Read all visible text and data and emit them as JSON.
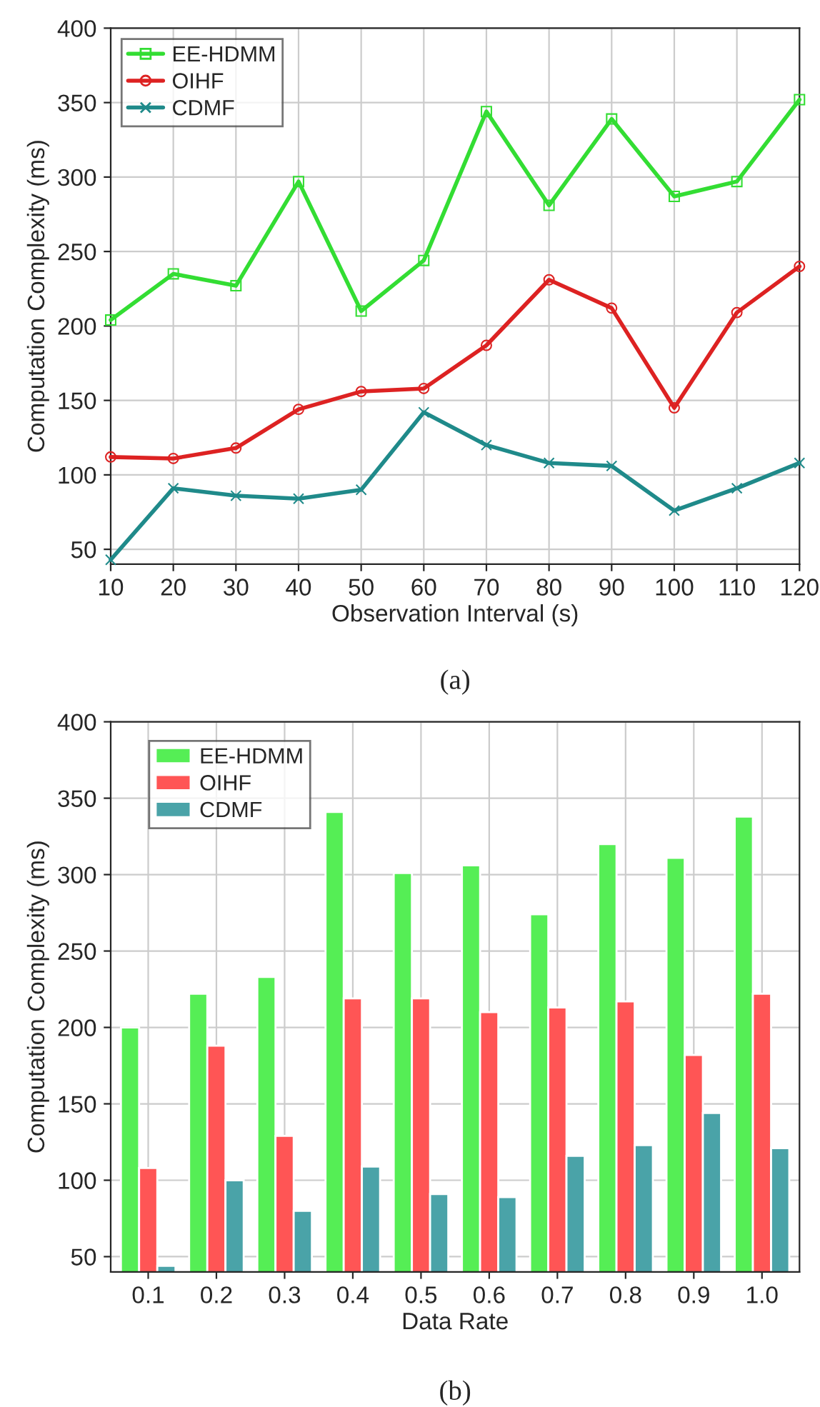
{
  "chart_data": [
    {
      "type": "line",
      "xlabel": "Observation Interval (s)",
      "ylabel": "Computation Complexity (ms)",
      "annotations": [
        "(a)"
      ],
      "x": [
        10,
        20,
        30,
        40,
        50,
        60,
        70,
        80,
        90,
        100,
        110,
        120
      ],
      "xlim": [
        10,
        120
      ],
      "xticks": [
        10,
        20,
        30,
        40,
        50,
        60,
        70,
        80,
        90,
        100,
        110,
        120
      ],
      "ylim": [
        40,
        400
      ],
      "yticks": [
        50,
        100,
        150,
        200,
        250,
        300,
        350,
        400
      ],
      "grid": true,
      "legend": "top left",
      "series": [
        {
          "name": "EE-HDMM",
          "color": "#33dd33",
          "marker": "square",
          "values": [
            204,
            235,
            227,
            297,
            210,
            244,
            344,
            281,
            339,
            287,
            297,
            352
          ]
        },
        {
          "name": "OIHF",
          "color": "#dd2222",
          "marker": "circle",
          "values": [
            112,
            111,
            118,
            144,
            156,
            158,
            187,
            231,
            212,
            145,
            209,
            240
          ]
        },
        {
          "name": "CDMF",
          "color": "#1f8a8a",
          "marker": "cross",
          "values": [
            43,
            91,
            86,
            84,
            90,
            142,
            120,
            108,
            106,
            76,
            91,
            108
          ]
        }
      ]
    },
    {
      "type": "bar",
      "xlabel": "Data Rate",
      "ylabel": "Computation Complexity (ms)",
      "annotations": [
        "(b)"
      ],
      "categories": [
        "0.1",
        "0.2",
        "0.3",
        "0.4",
        "0.5",
        "0.6",
        "0.7",
        "0.8",
        "0.9",
        "1.0"
      ],
      "ylim": [
        40,
        400
      ],
      "yticks": [
        50,
        100,
        150,
        200,
        250,
        300,
        350,
        400
      ],
      "grid": true,
      "legend": "top left",
      "series": [
        {
          "name": "EE-HDMM",
          "color": "#55ee55",
          "values": [
            200,
            222,
            233,
            341,
            301,
            306,
            274,
            320,
            311,
            338
          ]
        },
        {
          "name": "OIHF",
          "color": "#ff5555",
          "values": [
            108,
            188,
            129,
            219,
            219,
            210,
            213,
            217,
            182,
            222
          ]
        },
        {
          "name": "CDMF",
          "color": "#4aa3a8",
          "values": [
            44,
            100,
            80,
            109,
            91,
            89,
            116,
            123,
            144,
            121
          ]
        }
      ]
    }
  ]
}
